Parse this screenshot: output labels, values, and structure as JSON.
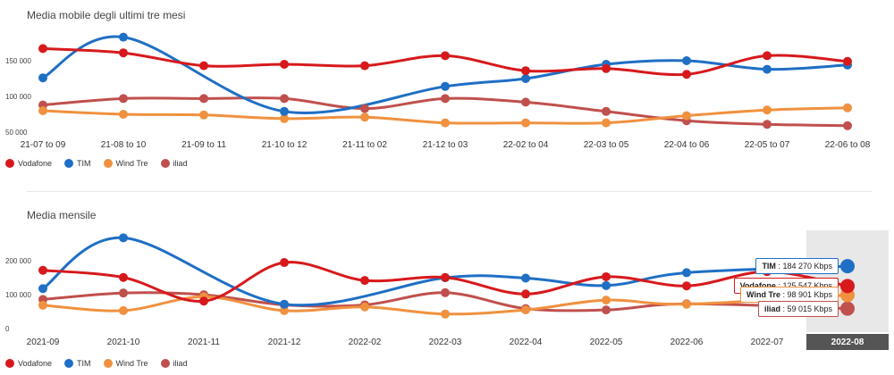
{
  "chart_data": [
    {
      "type": "line",
      "title": "Media mobile degli ultimi tre mesi",
      "categories": [
        "21-07 to 09",
        "21-08 to 10",
        "21-09 to 11",
        "21-10 to 12",
        "21-11 to 02",
        "21-12 to 03",
        "22-02 to 04",
        "22-03 to 05",
        "22-04 to 06",
        "22-05 to 07",
        "22-06 to 08"
      ],
      "y_ticks": [
        50000,
        100000,
        150000
      ],
      "y_tick_labels": [
        "50 000",
        "100 000",
        "150 000"
      ],
      "ylim": [
        45000,
        195000
      ],
      "grid": false,
      "legend_position": "bottom-left",
      "series": [
        {
          "name": "Vodafone",
          "color": "#d7191c",
          "values": [
            167000,
            161000,
            143000,
            145000,
            143000,
            157000,
            136000,
            139000,
            131000,
            157000,
            149000
          ]
        },
        {
          "name": "TIM",
          "color": "#1f6fc5",
          "values": [
            126000,
            183000,
            null,
            79000,
            null,
            114000,
            125000,
            145000,
            150000,
            138000,
            144000
          ]
        },
        {
          "name": "Wind Tre",
          "color": "#f0913f",
          "values": [
            80000,
            75000,
            74000,
            69000,
            71000,
            63000,
            63000,
            63000,
            73000,
            81000,
            84000
          ]
        },
        {
          "name": "iliad",
          "color": "#c0504d",
          "values": [
            88000,
            97000,
            97000,
            97000,
            83000,
            97000,
            92000,
            79000,
            66000,
            61000,
            59000
          ]
        }
      ]
    },
    {
      "type": "line",
      "title": "Media mensile",
      "categories": [
        "2021-09",
        "2021-10",
        "2021-11",
        "2021-12",
        "2022-02",
        "2022-03",
        "2022-04",
        "2022-05",
        "2022-06",
        "2022-07",
        "2022-08"
      ],
      "highlighted_category": "2022-08",
      "y_ticks": [
        0,
        100000,
        200000
      ],
      "y_tick_labels": [
        "0",
        "100 000",
        "200 000"
      ],
      "ylim": [
        0,
        290000
      ],
      "grid": false,
      "legend_position": "bottom-left",
      "series": [
        {
          "name": "Vodafone",
          "color": "#d7191c",
          "values": [
            172000,
            151000,
            81000,
            195000,
            142000,
            151000,
            102000,
            153000,
            126000,
            168000,
            125547
          ]
        },
        {
          "name": "TIM",
          "color": "#1f6fc5",
          "values": [
            118000,
            268000,
            null,
            72000,
            null,
            150000,
            149000,
            127000,
            165000,
            null,
            184270
          ]
        },
        {
          "name": "Wind Tre",
          "color": "#f0913f",
          "values": [
            69000,
            53000,
            94000,
            53000,
            64000,
            43000,
            55000,
            84000,
            72000,
            null,
            98901
          ]
        },
        {
          "name": "iliad",
          "color": "#c0504d",
          "values": [
            86000,
            105000,
            100000,
            70000,
            70000,
            106000,
            59000,
            55000,
            73000,
            null,
            59015
          ]
        }
      ],
      "tooltips": [
        {
          "name": "TIM",
          "value": "184 270 Kbps",
          "color": "#1f6fc5"
        },
        {
          "name": "Vodafone",
          "value": "125 547 Kbps",
          "color": "#d7191c"
        },
        {
          "name": "Wind Tre",
          "value": "98 901 Kbps",
          "color": "#f0913f"
        },
        {
          "name": "iliad",
          "value": "59 015 Kbps",
          "color": "#c0504d"
        }
      ]
    }
  ],
  "legend": [
    {
      "name": "Vodafone",
      "color": "#d7191c"
    },
    {
      "name": "TIM",
      "color": "#1f6fc5"
    },
    {
      "name": "Wind Tre",
      "color": "#f0913f"
    },
    {
      "name": "iliad",
      "color": "#c0504d"
    }
  ]
}
